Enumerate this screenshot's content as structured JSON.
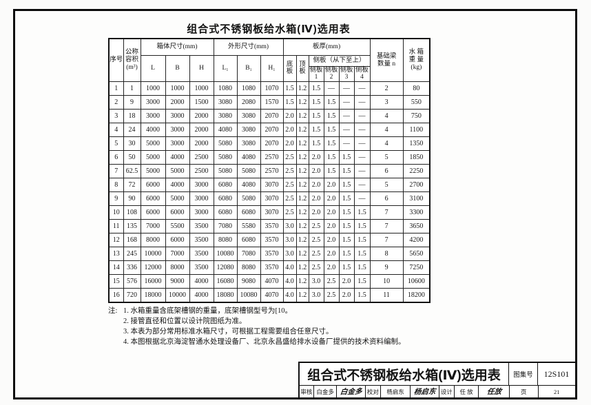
{
  "page_title": "组合式不锈钢板给水箱(Ⅳ)选用表",
  "table": {
    "header": {
      "seq": "序号",
      "nominal_volume": "公称容积",
      "nominal_volume_unit": "(m³)",
      "box_dims_group": "箱体尺寸(mm)",
      "outer_dims_group": "外形尺寸(mm)",
      "plate_group": "板厚(mm)",
      "col_L": "L",
      "col_B": "B",
      "col_H": "H",
      "col_L1": "L₁",
      "col_B1": "B₁",
      "col_H1": "H₁",
      "bottom_plate": "底板",
      "top_plate": "顶板",
      "side_group": "侧板（从下至上）",
      "side1": "侧板1",
      "side2": "侧板2",
      "side3": "侧板3",
      "side4": "侧板4",
      "beam_count_line1": "基础梁",
      "beam_count_line2": "数量 n",
      "weight_line1": "水 箱",
      "weight_line2": "重 量",
      "weight_line3": "(kg)"
    },
    "rows": [
      [
        "1",
        "1",
        "1000",
        "1000",
        "1000",
        "1080",
        "1080",
        "1070",
        "1.5",
        "1.2",
        "1.5",
        "—",
        "—",
        "—",
        "2",
        "80"
      ],
      [
        "2",
        "9",
        "3000",
        "2000",
        "1500",
        "3080",
        "2080",
        "1570",
        "1.5",
        "1.2",
        "1.5",
        "1.5",
        "—",
        "—",
        "3",
        "550"
      ],
      [
        "3",
        "18",
        "3000",
        "3000",
        "2000",
        "3080",
        "3080",
        "2070",
        "2.0",
        "1.2",
        "1.5",
        "1.5",
        "—",
        "—",
        "4",
        "750"
      ],
      [
        "4",
        "24",
        "4000",
        "3000",
        "2000",
        "4080",
        "3080",
        "2070",
        "2.0",
        "1.2",
        "1.5",
        "1.5",
        "—",
        "—",
        "4",
        "1100"
      ],
      [
        "5",
        "30",
        "5000",
        "3000",
        "2000",
        "5080",
        "3080",
        "2070",
        "2.0",
        "1.2",
        "1.5",
        "1.5",
        "—",
        "—",
        "4",
        "1350"
      ],
      [
        "6",
        "50",
        "5000",
        "4000",
        "2500",
        "5080",
        "4080",
        "2570",
        "2.5",
        "1.2",
        "2.0",
        "1.5",
        "1.5",
        "—",
        "5",
        "1850"
      ],
      [
        "7",
        "62.5",
        "5000",
        "5000",
        "2500",
        "5080",
        "5080",
        "2570",
        "2.5",
        "1.2",
        "2.0",
        "1.5",
        "1.5",
        "—",
        "6",
        "2250"
      ],
      [
        "8",
        "72",
        "6000",
        "4000",
        "3000",
        "6080",
        "4080",
        "3070",
        "2.5",
        "1.2",
        "2.0",
        "2.0",
        "1.5",
        "—",
        "5",
        "2700"
      ],
      [
        "9",
        "90",
        "6000",
        "5000",
        "3000",
        "6080",
        "5080",
        "3070",
        "2.5",
        "1.2",
        "2.0",
        "2.0",
        "1.5",
        "—",
        "6",
        "3100"
      ],
      [
        "10",
        "108",
        "6000",
        "6000",
        "3000",
        "6080",
        "6080",
        "3070",
        "2.5",
        "1.2",
        "2.0",
        "2.0",
        "1.5",
        "1.5",
        "7",
        "3300"
      ],
      [
        "11",
        "135",
        "7000",
        "5500",
        "3500",
        "7080",
        "5580",
        "3570",
        "3.0",
        "1.2",
        "2.5",
        "2.0",
        "1.5",
        "1.5",
        "7",
        "3650"
      ],
      [
        "12",
        "168",
        "8000",
        "6000",
        "3500",
        "8080",
        "6080",
        "3570",
        "3.0",
        "1.2",
        "2.5",
        "2.0",
        "1.5",
        "1.5",
        "7",
        "4200"
      ],
      [
        "13",
        "245",
        "10000",
        "7000",
        "3500",
        "10080",
        "7080",
        "3570",
        "3.0",
        "1.2",
        "2.5",
        "2.0",
        "1.5",
        "1.5",
        "8",
        "5650"
      ],
      [
        "14",
        "336",
        "12000",
        "8000",
        "3500",
        "12080",
        "8080",
        "3570",
        "4.0",
        "1.2",
        "2.5",
        "2.0",
        "1.5",
        "1.5",
        "9",
        "7250"
      ],
      [
        "15",
        "576",
        "16000",
        "9000",
        "4000",
        "16080",
        "9080",
        "4070",
        "4.0",
        "1.2",
        "3.0",
        "2.5",
        "2.0",
        "1.5",
        "10",
        "10600"
      ],
      [
        "16",
        "720",
        "18000",
        "10000",
        "4000",
        "18080",
        "10080",
        "4070",
        "4.0",
        "1.2",
        "3.0",
        "2.5",
        "2.0",
        "1.5",
        "11",
        "18200"
      ]
    ]
  },
  "notes": {
    "label": "注:",
    "items": [
      "1. 水箱重量含底架槽钢的重量，底架槽钢型号为[10。",
      "2. 接管直径和位置以设计院图纸为准。",
      "3. 本表为部分常用标准水箱尺寸，可根据工程需要组合任意尺寸。",
      "4. 本图根据北京海淀智通水处理设备厂、北京永昌盛给排水设备厂提供的技术资料编制。"
    ]
  },
  "title_block": {
    "title": "组合式不锈钢板给水箱(Ⅳ)选用表",
    "atlas_label": "图集号",
    "atlas_no": "12S101",
    "page_label": "页",
    "page_no": "21",
    "reviewer_label": "审核",
    "reviewer_name": "白金多",
    "reviewer_signature": "白金多",
    "checker_label": "校对",
    "checker_name": "杨启东",
    "checker_signature": "杨启东",
    "designer_label": "设计",
    "designer_name": "任 放",
    "designer_signature": "任放"
  }
}
